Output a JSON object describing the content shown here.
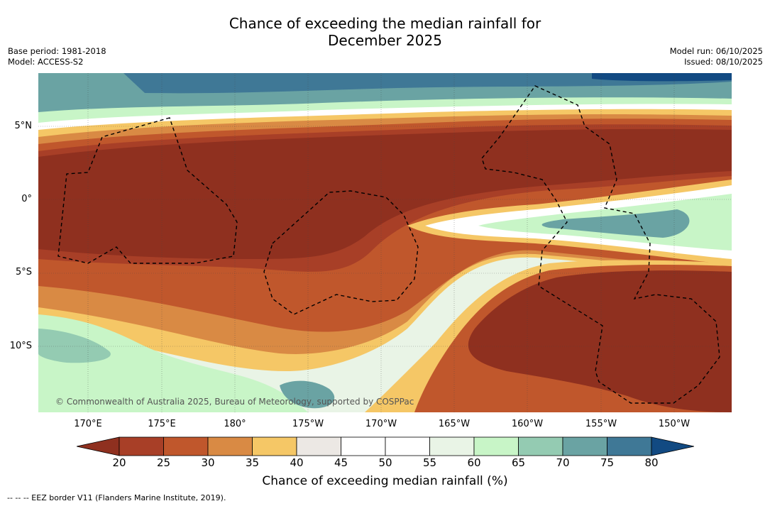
{
  "title": {
    "line1": "Chance of exceeding the median rainfall for",
    "line2": "December 2025"
  },
  "meta": {
    "base_period": "Base period: 1981-2018",
    "model": "Model: ACCESS-S2",
    "model_run": "Model run: 06/10/2025",
    "issued": "Issued: 08/10/2025"
  },
  "map": {
    "lat_labels": [
      "5°N",
      "0°",
      "5°S",
      "10°S"
    ],
    "lon_labels": [
      "170°E",
      "175°E",
      "180°",
      "175°W",
      "170°W",
      "165°W",
      "160°W",
      "155°W",
      "150°W"
    ],
    "copyright": "© Commonwealth of Australia 2025, Bureau of Meteorology, supported by COSPPac",
    "colors": {
      "c15": "#8f301f",
      "c20": "#a83f27",
      "c25": "#c0572c",
      "c30": "#d98a44",
      "c35": "#f5c766",
      "c40": "#ece8e4",
      "c45": "#ffffff",
      "c55": "#e9f4e6",
      "c60": "#c8f5c7",
      "c65": "#94cbb2",
      "c70": "#6aa3a3",
      "c75": "#3f7896",
      "c80": "#124a82"
    }
  },
  "colorbar": {
    "ticks": [
      "20",
      "25",
      "30",
      "35",
      "40",
      "45",
      "50",
      "55",
      "60",
      "65",
      "70",
      "75",
      "80"
    ],
    "colors": [
      "#a83f27",
      "#c0572c",
      "#d98a44",
      "#f5c766",
      "#ece8e4",
      "#ffffff",
      "#ffffff",
      "#e9f4e6",
      "#c8f5c7",
      "#94cbb2",
      "#6aa3a3",
      "#3f7896"
    ],
    "under_color": "#8f301f",
    "over_color": "#124a82",
    "label": "Chance of exceeding median rainfall (%)"
  },
  "footnote": "-- -- -- EEZ border V11 (Flanders Marine Institute, 2019)."
}
